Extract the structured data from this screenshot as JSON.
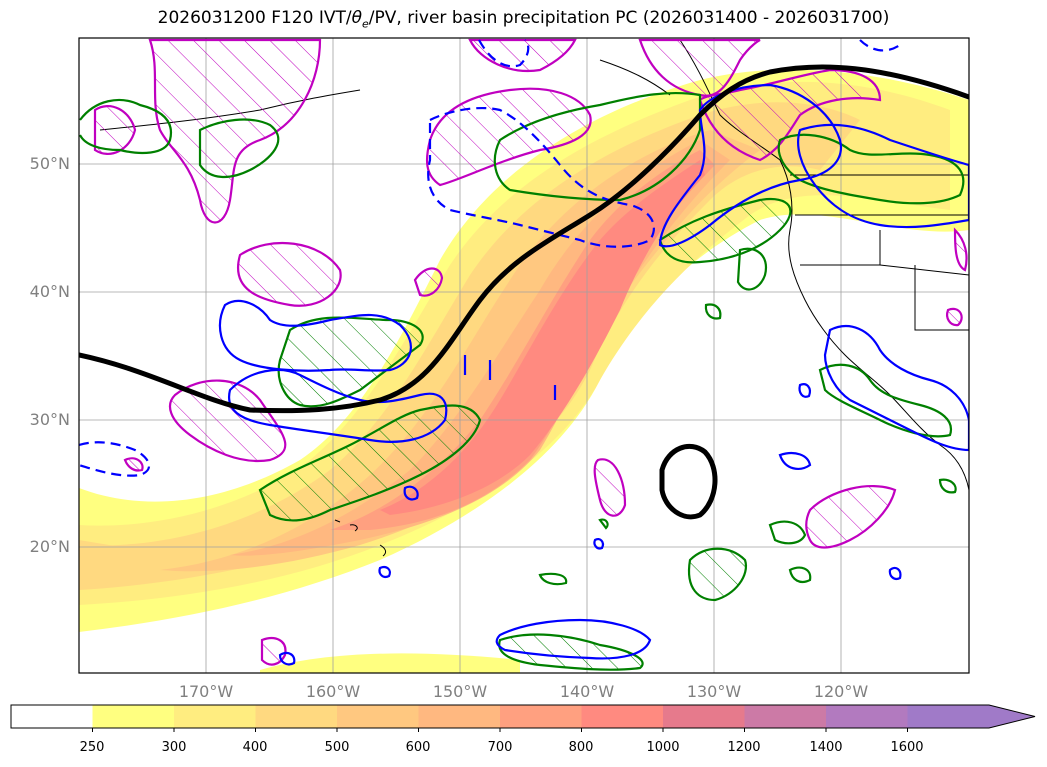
{
  "title": "2026031200 F120 IVT/θe/PV, river basin precipitation PC (2026031400 - 2026031700)",
  "title_parts": {
    "prefix": "2026031200 F120 IVT/",
    "theta": "θ",
    "sub": "e",
    "suffix": "/PV, river basin precipitation PC (2026031400 - 2026031700)"
  },
  "map": {
    "latitudes": [
      "50°N",
      "40°N",
      "30°N",
      "20°N"
    ],
    "longitudes": [
      "170°W",
      "160°W",
      "150°W",
      "140°W",
      "130°W",
      "120°W"
    ],
    "colors": {
      "pv_contour": "#c000c0",
      "theta_contour": "#008000",
      "ivt_contour_blue": "#0000ff",
      "jet_line": "#000000",
      "coast": "#000000"
    }
  },
  "colorbar": {
    "levels": [
      "250",
      "300",
      "400",
      "500",
      "600",
      "700",
      "800",
      "1000",
      "1200",
      "1400",
      "1600"
    ],
    "colors": [
      "#ffffff",
      "#ffff80",
      "#ffed80",
      "#ffd980",
      "#ffc880",
      "#ffb880",
      "#ffa080",
      "#ff8a80",
      "#e67a8c",
      "#cc7aa6",
      "#b27abf",
      "#a07ac8"
    ]
  }
}
